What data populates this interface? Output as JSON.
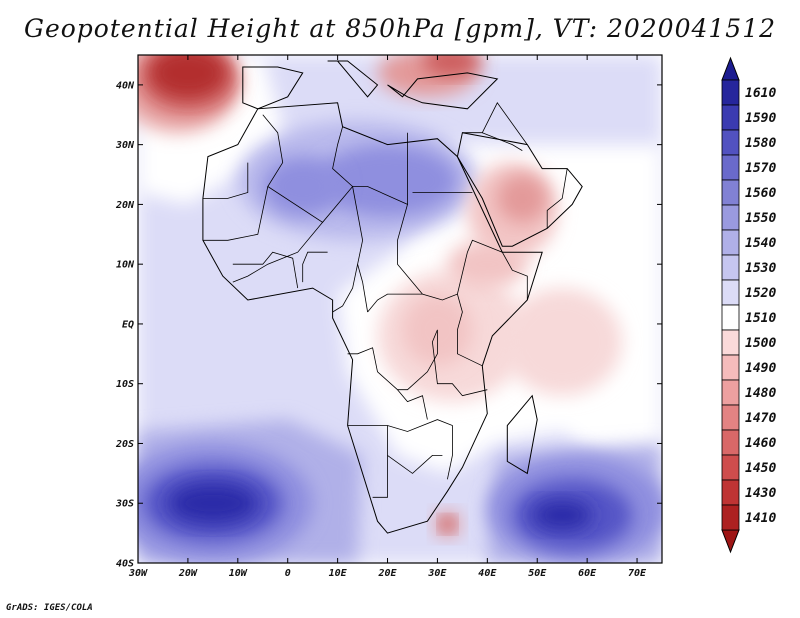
{
  "title": "Geopotential Height at 850hPa [gpm], VT: 2020041512",
  "credit": "GrADS: IGES/COLA",
  "map": {
    "lon_range": [
      -30,
      75
    ],
    "lat_range": [
      -40,
      45
    ],
    "lat_ticks": [
      {
        "value": 40,
        "label": "40N"
      },
      {
        "value": 30,
        "label": "30N"
      },
      {
        "value": 20,
        "label": "20N"
      },
      {
        "value": 10,
        "label": "10N"
      },
      {
        "value": 0,
        "label": "EQ"
      },
      {
        "value": -10,
        "label": "10S"
      },
      {
        "value": -20,
        "label": "20S"
      },
      {
        "value": -30,
        "label": "30S"
      },
      {
        "value": -40,
        "label": "40S"
      }
    ],
    "lon_ticks": [
      {
        "value": -30,
        "label": "30W"
      },
      {
        "value": -20,
        "label": "20W"
      },
      {
        "value": -10,
        "label": "10W"
      },
      {
        "value": 0,
        "label": "0"
      },
      {
        "value": 10,
        "label": "10E"
      },
      {
        "value": 20,
        "label": "20E"
      },
      {
        "value": 30,
        "label": "30E"
      },
      {
        "value": 40,
        "label": "40E"
      },
      {
        "value": 50,
        "label": "50E"
      },
      {
        "value": 60,
        "label": "60E"
      },
      {
        "value": 70,
        "label": "70E"
      }
    ],
    "background_color": "#ffffff",
    "field_blobs": [
      {
        "lon": -22,
        "lat": 40,
        "rx": 12,
        "ry": 8,
        "color": "#e8a9a9"
      },
      {
        "lon": -20,
        "lat": 41,
        "rx": 10,
        "ry": 6,
        "color": "#d46f6f"
      },
      {
        "lon": -20,
        "lat": 42,
        "rx": 8,
        "ry": 4.5,
        "color": "#b32e2e"
      },
      {
        "lon": 28,
        "lat": 42,
        "rx": 10,
        "ry": 4,
        "color": "#e39a9a"
      },
      {
        "lon": 33,
        "lat": 44,
        "rx": 6,
        "ry": 2.5,
        "color": "#cc5c5c"
      },
      {
        "lon": 14,
        "lat": 24,
        "rx": 24,
        "ry": 10,
        "color": "#b9b9ec"
      },
      {
        "lon": 20,
        "lat": 24,
        "rx": 14,
        "ry": 6,
        "color": "#8f8fdf"
      },
      {
        "lon": 3,
        "lat": 23,
        "rx": 8,
        "ry": 5,
        "color": "#8f8fdf"
      },
      {
        "lon": 45,
        "lat": 19,
        "rx": 9,
        "ry": 8,
        "color": "#f2c4c4"
      },
      {
        "lon": 47,
        "lat": 21,
        "rx": 5,
        "ry": 4,
        "color": "#e39a9a"
      },
      {
        "lon": 33,
        "lat": -2,
        "rx": 15,
        "ry": 11,
        "color": "#f7d9d9"
      },
      {
        "lon": 30,
        "lat": -1,
        "rx": 7,
        "ry": 6,
        "color": "#f2c4c4"
      },
      {
        "lon": 55,
        "lat": -3,
        "rx": 12,
        "ry": 9,
        "color": "#f7d9d9"
      },
      {
        "lon": 40,
        "lat": 10,
        "rx": 8,
        "ry": 4,
        "color": "#f2c4c4"
      },
      {
        "lon": -15,
        "lat": -30,
        "rx": 20,
        "ry": 10,
        "color": "#8f8fdf"
      },
      {
        "lon": -15,
        "lat": -30,
        "rx": 14,
        "ry": 6.5,
        "color": "#5555c6"
      },
      {
        "lon": -15,
        "lat": -30,
        "rx": 9,
        "ry": 3.5,
        "color": "#2a2aa8"
      },
      {
        "lon": 58,
        "lat": -31,
        "rx": 18,
        "ry": 9,
        "color": "#8f8fdf"
      },
      {
        "lon": 57,
        "lat": -32,
        "rx": 12,
        "ry": 6,
        "color": "#5555c6"
      },
      {
        "lon": 55,
        "lat": -32,
        "rx": 6,
        "ry": 2.5,
        "color": "#2a2aa8"
      },
      {
        "lon": 32,
        "lat": -33.5,
        "rx": 2.6,
        "ry": 2.2,
        "color": "#e39a9a"
      },
      {
        "lon": 32,
        "lat": -33.5,
        "rx": 1.4,
        "ry": 1.2,
        "color": "#c24646"
      }
    ],
    "coastline_africa": [
      [
        -17,
        21
      ],
      [
        -16,
        28
      ],
      [
        -10,
        30
      ],
      [
        -6,
        36
      ],
      [
        10,
        37
      ],
      [
        11,
        33
      ],
      [
        20,
        30
      ],
      [
        30,
        31
      ],
      [
        34,
        28
      ],
      [
        43,
        12
      ],
      [
        51,
        12
      ],
      [
        48,
        4
      ],
      [
        41,
        -2
      ],
      [
        39,
        -7
      ],
      [
        40,
        -15
      ],
      [
        35,
        -24
      ],
      [
        32,
        -28
      ],
      [
        28,
        -33
      ],
      [
        20,
        -35
      ],
      [
        18,
        -33
      ],
      [
        12,
        -17
      ],
      [
        13,
        -6
      ],
      [
        9,
        1
      ],
      [
        9,
        4
      ],
      [
        5,
        6
      ],
      [
        -8,
        4
      ],
      [
        -13,
        8
      ],
      [
        -17,
        14
      ],
      [
        -17,
        21
      ]
    ],
    "coastline_arabia": [
      [
        34,
        28
      ],
      [
        39,
        21
      ],
      [
        43,
        13
      ],
      [
        45,
        13
      ],
      [
        52,
        16
      ],
      [
        57,
        20
      ],
      [
        59,
        23
      ],
      [
        56,
        26
      ],
      [
        51,
        26
      ],
      [
        48,
        30
      ],
      [
        35,
        32
      ],
      [
        34,
        28
      ]
    ],
    "coastline_madagascar": [
      [
        49,
        -12
      ],
      [
        50,
        -16
      ],
      [
        48,
        -25
      ],
      [
        44,
        -23
      ],
      [
        44,
        -17
      ],
      [
        49,
        -12
      ]
    ],
    "coastline_iberia": [
      [
        -9,
        37
      ],
      [
        -9,
        43
      ],
      [
        -2,
        43
      ],
      [
        3,
        42
      ],
      [
        0,
        38
      ],
      [
        -6,
        36
      ],
      [
        -9,
        37
      ]
    ],
    "coastline_italy": [
      [
        8,
        44
      ],
      [
        12,
        44
      ],
      [
        18,
        40
      ],
      [
        16,
        38
      ],
      [
        13,
        41
      ],
      [
        10,
        44
      ],
      [
        8,
        44
      ]
    ],
    "coastline_turkey_greece": [
      [
        20,
        40
      ],
      [
        23,
        38
      ],
      [
        26,
        41
      ],
      [
        36,
        42
      ],
      [
        42,
        41
      ],
      [
        36,
        36
      ],
      [
        27,
        37
      ],
      [
        24,
        38
      ],
      [
        20,
        40
      ]
    ],
    "country_borders": [
      [
        [
          -8,
          27
        ],
        [
          -8,
          22
        ],
        [
          -12,
          21
        ],
        [
          -17,
          21
        ]
      ],
      [
        [
          -5,
          35
        ],
        [
          -2,
          32
        ],
        [
          -1,
          27
        ],
        [
          -4,
          23
        ],
        [
          7,
          17
        ],
        [
          13,
          23
        ],
        [
          16,
          23
        ],
        [
          24,
          20
        ],
        [
          24,
          32
        ]
      ],
      [
        [
          11,
          33
        ],
        [
          10,
          30
        ],
        [
          9,
          26
        ],
        [
          13,
          23
        ]
      ],
      [
        [
          25,
          22
        ],
        [
          37,
          22
        ]
      ],
      [
        [
          24,
          20
        ],
        [
          22,
          14
        ],
        [
          22,
          10
        ],
        [
          27,
          5
        ],
        [
          31,
          4
        ],
        [
          34,
          5
        ],
        [
          36,
          12
        ],
        [
          37,
          14
        ],
        [
          43,
          12
        ]
      ],
      [
        [
          13,
          23
        ],
        [
          15,
          14
        ],
        [
          14,
          10
        ],
        [
          15,
          7
        ],
        [
          16,
          2
        ]
      ],
      [
        [
          7,
          17
        ],
        [
          2,
          12
        ],
        [
          -4,
          10
        ],
        [
          -8,
          8
        ],
        [
          -11,
          7
        ]
      ],
      [
        [
          -4,
          23
        ],
        [
          -6,
          15
        ],
        [
          -12,
          14
        ],
        [
          -17,
          14
        ]
      ],
      [
        [
          -11,
          10
        ],
        [
          -8,
          10
        ],
        [
          -5,
          10
        ],
        [
          -3,
          12
        ],
        [
          1,
          11
        ],
        [
          2,
          6
        ]
      ],
      [
        [
          8,
          12
        ],
        [
          4,
          12
        ],
        [
          3,
          10
        ],
        [
          3,
          7
        ]
      ],
      [
        [
          14,
          10
        ],
        [
          13,
          6
        ],
        [
          11,
          3
        ],
        [
          9,
          2
        ]
      ],
      [
        [
          16,
          2
        ],
        [
          18,
          4
        ],
        [
          20,
          5
        ],
        [
          24,
          5
        ],
        [
          27,
          5
        ]
      ],
      [
        [
          12,
          -5
        ],
        [
          14,
          -5
        ],
        [
          17,
          -4
        ],
        [
          18,
          -8
        ],
        [
          22,
          -11
        ],
        [
          24,
          -11
        ],
        [
          28,
          -8
        ],
        [
          30,
          -5
        ],
        [
          30,
          -1
        ]
      ],
      [
        [
          34,
          5
        ],
        [
          35,
          2
        ],
        [
          34,
          -1
        ],
        [
          34,
          -5
        ],
        [
          39,
          -7
        ]
      ],
      [
        [
          30,
          -1
        ],
        [
          29,
          -3
        ],
        [
          30,
          -10
        ],
        [
          33,
          -10
        ],
        [
          35,
          -12
        ],
        [
          40,
          -11
        ]
      ],
      [
        [
          12,
          -17
        ],
        [
          20,
          -17
        ],
        [
          24,
          -18
        ],
        [
          27,
          -17
        ],
        [
          30,
          -16
        ],
        [
          33,
          -17
        ],
        [
          33,
          -22
        ],
        [
          32,
          -26
        ]
      ],
      [
        [
          20,
          -17
        ],
        [
          20,
          -22
        ],
        [
          20,
          -29
        ],
        [
          17,
          -29
        ]
      ],
      [
        [
          20,
          -22
        ],
        [
          25,
          -25
        ],
        [
          29,
          -22
        ],
        [
          31,
          -22
        ]
      ],
      [
        [
          22,
          -11
        ],
        [
          24,
          -13
        ],
        [
          27,
          -12
        ],
        [
          28,
          -16
        ]
      ],
      [
        [
          43,
          12
        ],
        [
          45,
          9
        ],
        [
          48,
          8
        ],
        [
          48,
          4
        ]
      ],
      [
        [
          35,
          32
        ],
        [
          39,
          32
        ],
        [
          42,
          37
        ],
        [
          48,
          30
        ]
      ],
      [
        [
          39,
          32
        ],
        [
          45,
          30
        ],
        [
          47,
          29
        ]
      ],
      [
        [
          52,
          16
        ],
        [
          52,
          19
        ],
        [
          55,
          21
        ],
        [
          56,
          26
        ]
      ]
    ]
  },
  "colorbar": {
    "levels": [
      {
        "label": "1610",
        "color": "#26269c"
      },
      {
        "label": "1590",
        "color": "#3b3bb1"
      },
      {
        "label": "1580",
        "color": "#5252c0"
      },
      {
        "label": "1570",
        "color": "#6a6acb"
      },
      {
        "label": "1560",
        "color": "#8181d4"
      },
      {
        "label": "1550",
        "color": "#9a9adf"
      },
      {
        "label": "1540",
        "color": "#b0b0e8"
      },
      {
        "label": "1530",
        "color": "#c6c6f0"
      },
      {
        "label": "1520",
        "color": "#dcdcf7"
      },
      {
        "label": "1510",
        "color": "#ffffff"
      },
      {
        "label": "1500",
        "color": "#fbdada"
      },
      {
        "label": "1490",
        "color": "#f5bcbc"
      },
      {
        "label": "1480",
        "color": "#eda0a0"
      },
      {
        "label": "1470",
        "color": "#e38383"
      },
      {
        "label": "1460",
        "color": "#d96868"
      },
      {
        "label": "1450",
        "color": "#ce4d4d"
      },
      {
        "label": "1430",
        "color": "#bf3434"
      },
      {
        "label": "1410",
        "color": "#ad2121"
      }
    ],
    "top_arrow_color": "#1c1c90",
    "bottom_arrow_color": "#9e1515"
  }
}
